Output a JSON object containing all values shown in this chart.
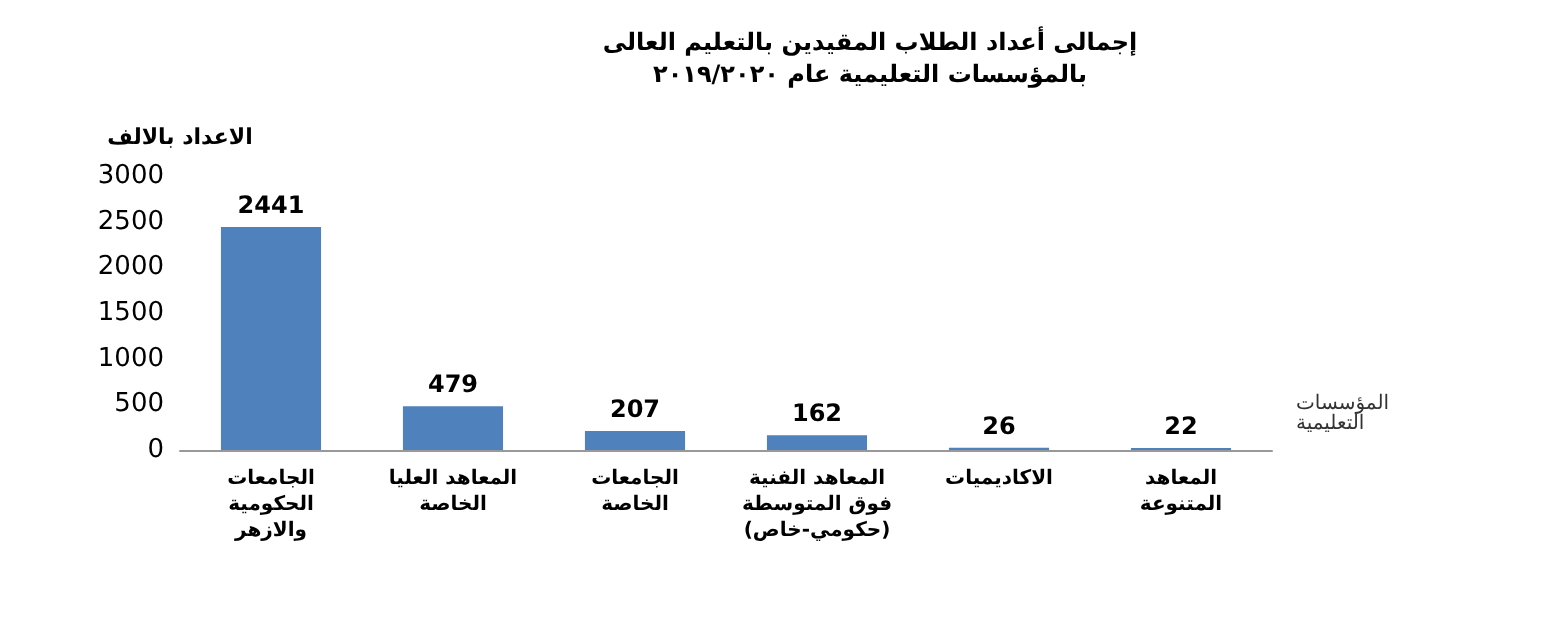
{
  "chart_data": {
    "type": "bar",
    "title": "إجمالى أعداد الطلاب المقيدين بالتعليم العالى بالمؤسسات التعليمية عام ٢٠١٩/٢٠٢٠",
    "ylabel": "الاعداد بالالف",
    "xlabel": "المؤسسات التعليمية",
    "categories": [
      "الجامعات الحكومية والازهر",
      "المعاهد العليا الخاصة",
      "الجامعات الخاصة",
      "المعاهد الفنية فوق المتوسطة (حكومي-خاص)",
      "الاكاديميات",
      "المعاهد المتنوعة"
    ],
    "values": [
      2441,
      479,
      207,
      162,
      26,
      22
    ],
    "color": "#4f81bd",
    "ylim": [
      0,
      3000
    ],
    "yticks": [
      0,
      500,
      1000,
      1500,
      2000,
      2500,
      3000
    ],
    "grid": false,
    "data_labels": true
  }
}
